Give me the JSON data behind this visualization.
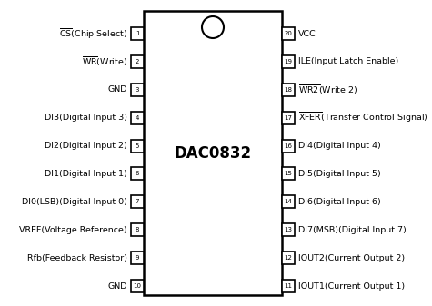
{
  "title": "DAC0832",
  "bg_color": "#ffffff",
  "text_color": "#000000",
  "left_pins": [
    {
      "num": 1,
      "label": "CS(Chip Select)",
      "overbar": "CS",
      "plain": "(Chip Select)"
    },
    {
      "num": 2,
      "label": "WR(Write)",
      "overbar": "WR",
      "plain": "(Write)"
    },
    {
      "num": 3,
      "label": "GND",
      "overbar": null,
      "plain": null
    },
    {
      "num": 4,
      "label": "DI3(Digital Input 3)",
      "overbar": null,
      "plain": null
    },
    {
      "num": 5,
      "label": "DI2(Digital Input 2)",
      "overbar": null,
      "plain": null
    },
    {
      "num": 6,
      "label": "DI1(Digital Input 1)",
      "overbar": null,
      "plain": null
    },
    {
      "num": 7,
      "label": "DI0(LSB)(Digital Input 0)",
      "overbar": null,
      "plain": null
    },
    {
      "num": 8,
      "label": "VREF(Voltage Reference)",
      "overbar": null,
      "plain": null
    },
    {
      "num": 9,
      "label": "Rfb(Feedback Resistor)",
      "overbar": null,
      "plain": null
    },
    {
      "num": 10,
      "label": "GND",
      "overbar": null,
      "plain": null
    }
  ],
  "right_pins": [
    {
      "num": 20,
      "label": "VCC",
      "overbar": null,
      "plain": null
    },
    {
      "num": 19,
      "label": "ILE(Input Latch Enable)",
      "overbar": null,
      "plain": null
    },
    {
      "num": 18,
      "label": "WR2(Write 2)",
      "overbar": "WR2",
      "plain": "(Write 2)"
    },
    {
      "num": 17,
      "label": "XFER(Transfer Control Signal)",
      "overbar": "XFER",
      "plain": "(Transfer Control Signal)"
    },
    {
      "num": 16,
      "label": "DI4(Digital Input 4)",
      "overbar": null,
      "plain": null
    },
    {
      "num": 15,
      "label": "DI5(Digital Input 5)",
      "overbar": null,
      "plain": null
    },
    {
      "num": 14,
      "label": "DI6(Digital Input 6)",
      "overbar": null,
      "plain": null
    },
    {
      "num": 13,
      "label": "DI7(MSB)(Digital Input 7)",
      "overbar": null,
      "plain": null
    },
    {
      "num": 12,
      "label": "IOUT2(Current Output 2)",
      "overbar": null,
      "plain": null
    },
    {
      "num": 11,
      "label": "IOUT1(Current Output 1)",
      "overbar": null,
      "plain": null
    }
  ]
}
